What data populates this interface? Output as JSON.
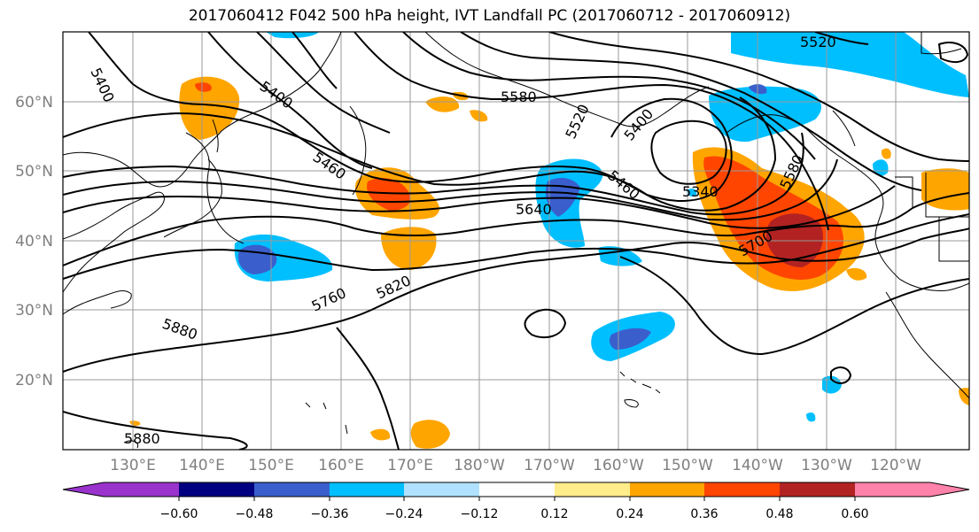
{
  "title": "2017060412 F042 500 hPa height, IVT Landfall PC (2017060712 - 2017060912)",
  "lat_labels": [
    "60°N",
    "50°N",
    "40°N",
    "30°N",
    "20°N"
  ],
  "lon_labels": [
    "130°E",
    "140°E",
    "150°E",
    "160°E",
    "170°E",
    "180°W",
    "170°W",
    "160°W",
    "150°W",
    "140°W",
    "130°W",
    "120°W"
  ],
  "contour_labels": [
    "5400",
    "5400",
    "5460",
    "5580",
    "5520",
    "5400",
    "5460",
    "5340",
    "5580",
    "5640",
    "5700",
    "5760",
    "5820",
    "5880",
    "5880",
    "5520"
  ],
  "colorbar": {
    "ticks": [
      "−0.60",
      "−0.48",
      "−0.36",
      "−0.24",
      "−0.12",
      "0.12",
      "0.24",
      "0.36",
      "0.48",
      "0.60"
    ],
    "colors": [
      "#9933cc",
      "#000080",
      "#3a5fcd",
      "#00bfff",
      "#b0e2ff",
      "#ffffff",
      "#ffec8b",
      "#ffa500",
      "#ff4500",
      "#b22222",
      "#ff82ab"
    ]
  }
}
